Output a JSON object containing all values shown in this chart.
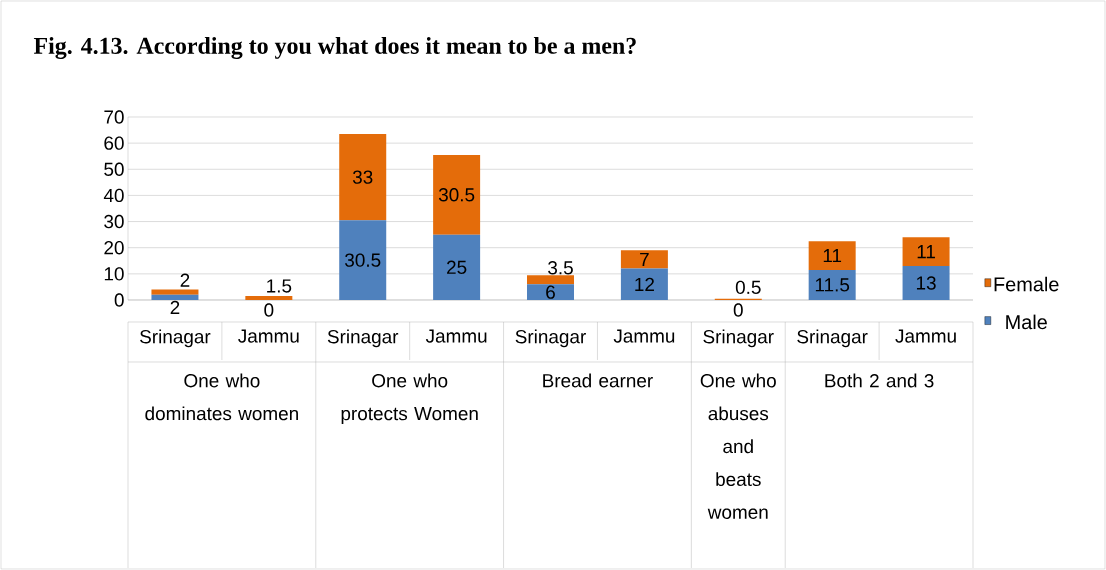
{
  "chart_data": {
    "type": "bar",
    "stacked": true,
    "title": "Fig. 4.13. According to you what does it mean to be a men?",
    "categories": [
      "Srinagar",
      "Jammu",
      "Srinagar",
      "Jammu",
      "Srinagar",
      "Jammu",
      "Srinagar",
      "Srinagar",
      "Jammu"
    ],
    "series": [
      {
        "name": "Male",
        "color": "#4f81bd",
        "values": [
          2,
          0,
          30.5,
          25,
          6,
          12,
          0,
          11.5,
          13
        ]
      },
      {
        "name": "Female",
        "color": "#e46c0a",
        "values": [
          2,
          1.5,
          33,
          30.5,
          3.5,
          7,
          0.5,
          11,
          11
        ]
      }
    ],
    "annotations": [
      "One who dominates women",
      "One who protects Women",
      "Bread earner",
      "One who abuses and beats women",
      "Both 2 and 3"
    ],
    "ylim": [
      0,
      70
    ],
    "yticks": [
      0,
      10,
      20,
      30,
      40,
      50,
      60,
      70
    ],
    "grid": "y",
    "legend": "right",
    "data_labels": true
  }
}
